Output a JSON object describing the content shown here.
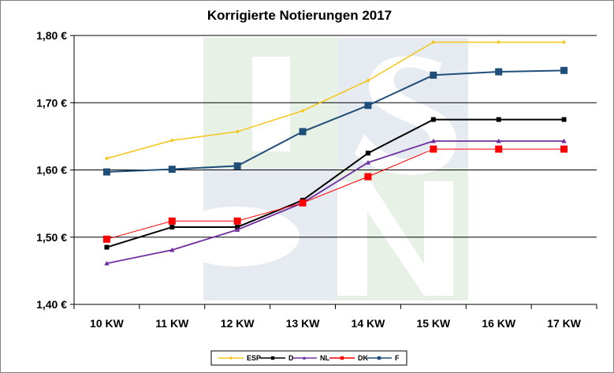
{
  "chart_data": {
    "type": "line",
    "title": "Korrigierte Notierungen 2017",
    "xlabel": "",
    "ylabel": "",
    "categories": [
      "10 KW",
      "11 KW",
      "12 KW",
      "13 KW",
      "14 KW",
      "15 KW",
      "16 KW",
      "17 KW"
    ],
    "ylim": [
      1.4,
      1.8
    ],
    "yticks": [
      1.4,
      1.5,
      1.6,
      1.7,
      1.8
    ],
    "ytick_labels": [
      "1,40 €",
      "1,50 €",
      "1,60 €",
      "1,70 €",
      "1,80 €"
    ],
    "grid": true,
    "legend_position": "bottom",
    "watermark": "ISN",
    "series": [
      {
        "name": "ESP",
        "color": "#F5C518",
        "marker": "diamond",
        "values": [
          1.617,
          1.644,
          1.657,
          1.688,
          1.733,
          1.79,
          1.79,
          1.79
        ]
      },
      {
        "name": "D",
        "color": "#000000",
        "marker": "square",
        "values": [
          1.485,
          1.515,
          1.515,
          1.555,
          1.625,
          1.675,
          1.675,
          1.675
        ]
      },
      {
        "name": "NL",
        "color": "#7030A0",
        "marker": "triangle",
        "values": [
          1.461,
          1.481,
          1.511,
          1.551,
          1.611,
          1.643,
          1.643,
          1.643
        ]
      },
      {
        "name": "DK",
        "color": "#FF0000",
        "marker": "square",
        "values": [
          1.497,
          1.524,
          1.524,
          1.551,
          1.59,
          1.631,
          1.631,
          1.631
        ]
      },
      {
        "name": "F",
        "color": "#1F4E79",
        "marker": "square",
        "values": [
          1.597,
          1.601,
          1.606,
          1.657,
          1.696,
          1.741,
          1.746,
          1.748
        ]
      }
    ]
  }
}
